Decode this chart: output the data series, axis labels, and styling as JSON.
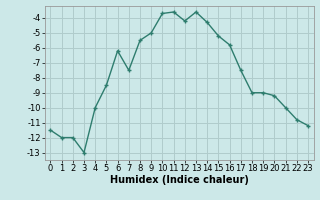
{
  "x": [
    0,
    1,
    2,
    3,
    4,
    5,
    6,
    7,
    8,
    9,
    10,
    11,
    12,
    13,
    14,
    15,
    16,
    17,
    18,
    19,
    20,
    21,
    22,
    23
  ],
  "y": [
    -11.5,
    -12.0,
    -12.0,
    -13.0,
    -10.0,
    -8.5,
    -6.2,
    -7.5,
    -5.5,
    -5.0,
    -3.7,
    -3.6,
    -4.2,
    -3.6,
    -4.3,
    -5.2,
    -5.8,
    -7.5,
    -9.0,
    -9.0,
    -9.2,
    -10.0,
    -10.8,
    -11.2
  ],
  "line_color": "#2e7d6e",
  "marker": "+",
  "marker_size": 3,
  "linewidth": 1.0,
  "markeredgewidth": 1.0,
  "bg_color": "#cce8e8",
  "grid_color": "#b0cccc",
  "xlabel": "Humidex (Indice chaleur)",
  "xlim": [
    -0.5,
    23.5
  ],
  "ylim": [
    -13.5,
    -3.2
  ],
  "yticks": [
    -13,
    -12,
    -11,
    -10,
    -9,
    -8,
    -7,
    -6,
    -5,
    -4
  ],
  "xticks": [
    0,
    1,
    2,
    3,
    4,
    5,
    6,
    7,
    8,
    9,
    10,
    11,
    12,
    13,
    14,
    15,
    16,
    17,
    18,
    19,
    20,
    21,
    22,
    23
  ],
  "xlabel_fontsize": 7,
  "tick_fontsize": 6
}
